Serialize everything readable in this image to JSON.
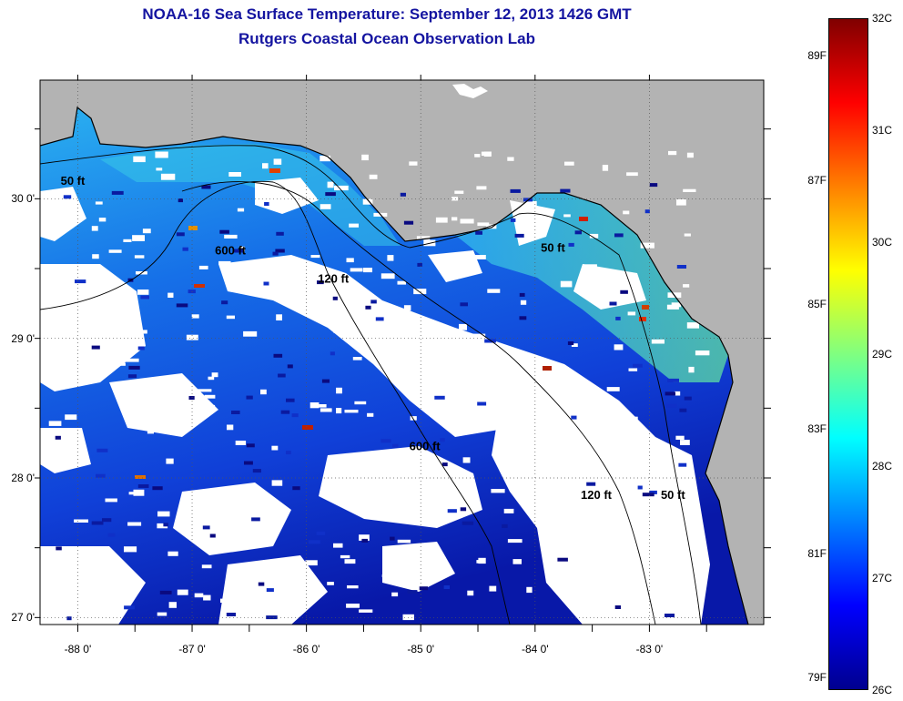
{
  "header": {
    "title": "NOAA-16 Sea Surface Temperature:  September 12, 2013 1426 GMT",
    "subtitle": "Rutgers Coastal Ocean Observation Lab"
  },
  "map": {
    "x_ticks": [
      {
        "value": -88,
        "label": "-88 0'"
      },
      {
        "value": -87,
        "label": "-87 0'"
      },
      {
        "value": -86,
        "label": "-86 0'"
      },
      {
        "value": -85,
        "label": "-85 0'"
      },
      {
        "value": -84,
        "label": "-84 0'"
      },
      {
        "value": -83,
        "label": "-83 0'"
      }
    ],
    "y_ticks": [
      {
        "value": 30,
        "label": "30 0'"
      },
      {
        "value": 29,
        "label": "29 0'"
      },
      {
        "value": 28,
        "label": "28 0'"
      },
      {
        "value": 27,
        "label": "27 0'"
      }
    ],
    "lon_range": [
      -88.33,
      -82.0
    ],
    "lat_range": [
      26.95,
      30.85
    ],
    "contour_labels": [
      {
        "text": "50 ft",
        "lon": -88.15,
        "lat": 30.1
      },
      {
        "text": "600 ft",
        "lon": -86.8,
        "lat": 29.6
      },
      {
        "text": "120 ft",
        "lon": -85.9,
        "lat": 29.4
      },
      {
        "text": "50 ft",
        "lon": -83.95,
        "lat": 29.62
      },
      {
        "text": "600 ft",
        "lon": -85.1,
        "lat": 28.2
      },
      {
        "text": "120 ft",
        "lon": -83.6,
        "lat": 27.85
      },
      {
        "text": "50 ft",
        "lon": -82.9,
        "lat": 27.85
      }
    ],
    "land_color": "#b3b3b3",
    "cloud_color": "#ffffff"
  },
  "colorbar": {
    "range_c": [
      26,
      32
    ],
    "celsius_labels": [
      "32C",
      "31C",
      "30C",
      "29C",
      "28C",
      "27C",
      "26C"
    ],
    "fahrenheit_labels": [
      "89F",
      "87F",
      "85F",
      "83F",
      "81F",
      "79F"
    ],
    "colors": [
      "#00008f",
      "#0000ff",
      "#0080ff",
      "#00ffff",
      "#80ff80",
      "#ffff00",
      "#ff8000",
      "#ff0000",
      "#800000"
    ]
  }
}
